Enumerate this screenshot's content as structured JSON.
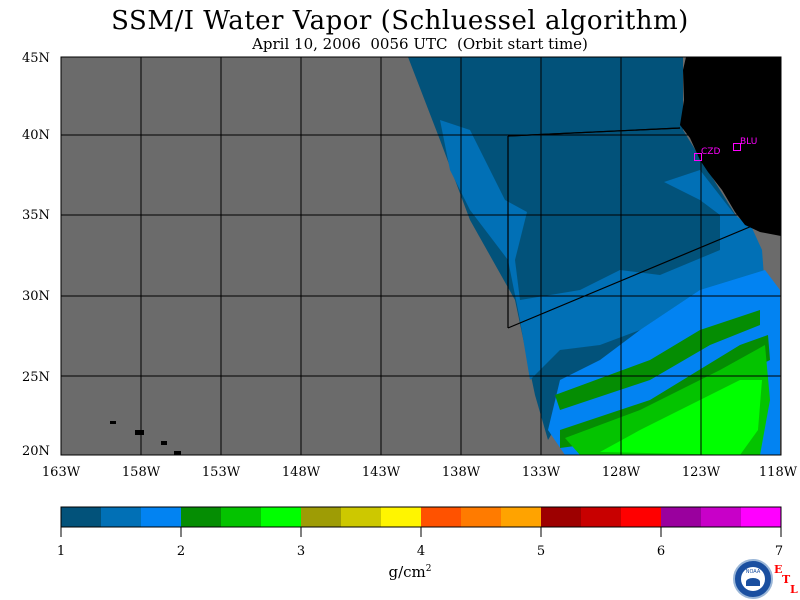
{
  "title": "SSM/I Water Vapor (Schluessel algorithm)",
  "subtitle": "April 10, 2006  0056 UTC  (Orbit start time)",
  "lat_labels": [
    "45N",
    "40N",
    "35N",
    "30N",
    "25N",
    "20N"
  ],
  "lon_labels": [
    "163W",
    "158W",
    "153W",
    "148W",
    "143W",
    "138W",
    "133W",
    "128W",
    "123W",
    "118W"
  ],
  "stations": [
    {
      "name": "CZD",
      "lon": -123.1,
      "lat": 38.6
    },
    {
      "name": "BLU",
      "lon": -120.9,
      "lat": 39.3
    }
  ],
  "colorbar": {
    "ticks": [
      "1",
      "2",
      "3",
      "4",
      "5",
      "6",
      "7"
    ],
    "colors": [
      "#02527a",
      "#0170b6",
      "#0283f2",
      "#058d03",
      "#04c300",
      "#00ff00",
      "#9e9c05",
      "#cdc800",
      "#fff500",
      "#ff5200",
      "#ff7b00",
      "#ffa300",
      "#9d0000",
      "#c80000",
      "#ff0000",
      "#9a009e",
      "#c800c8",
      "#ff00ff"
    ],
    "units": "g/cm",
    "units_sup": "2"
  },
  "colors": {
    "land": "#000000",
    "no_data": "#6b6b6b",
    "grid": "#000000",
    "station": "#ff00ff"
  },
  "logo": {
    "text": "NOAA",
    "etl": [
      "E",
      "T",
      "L"
    ]
  }
}
